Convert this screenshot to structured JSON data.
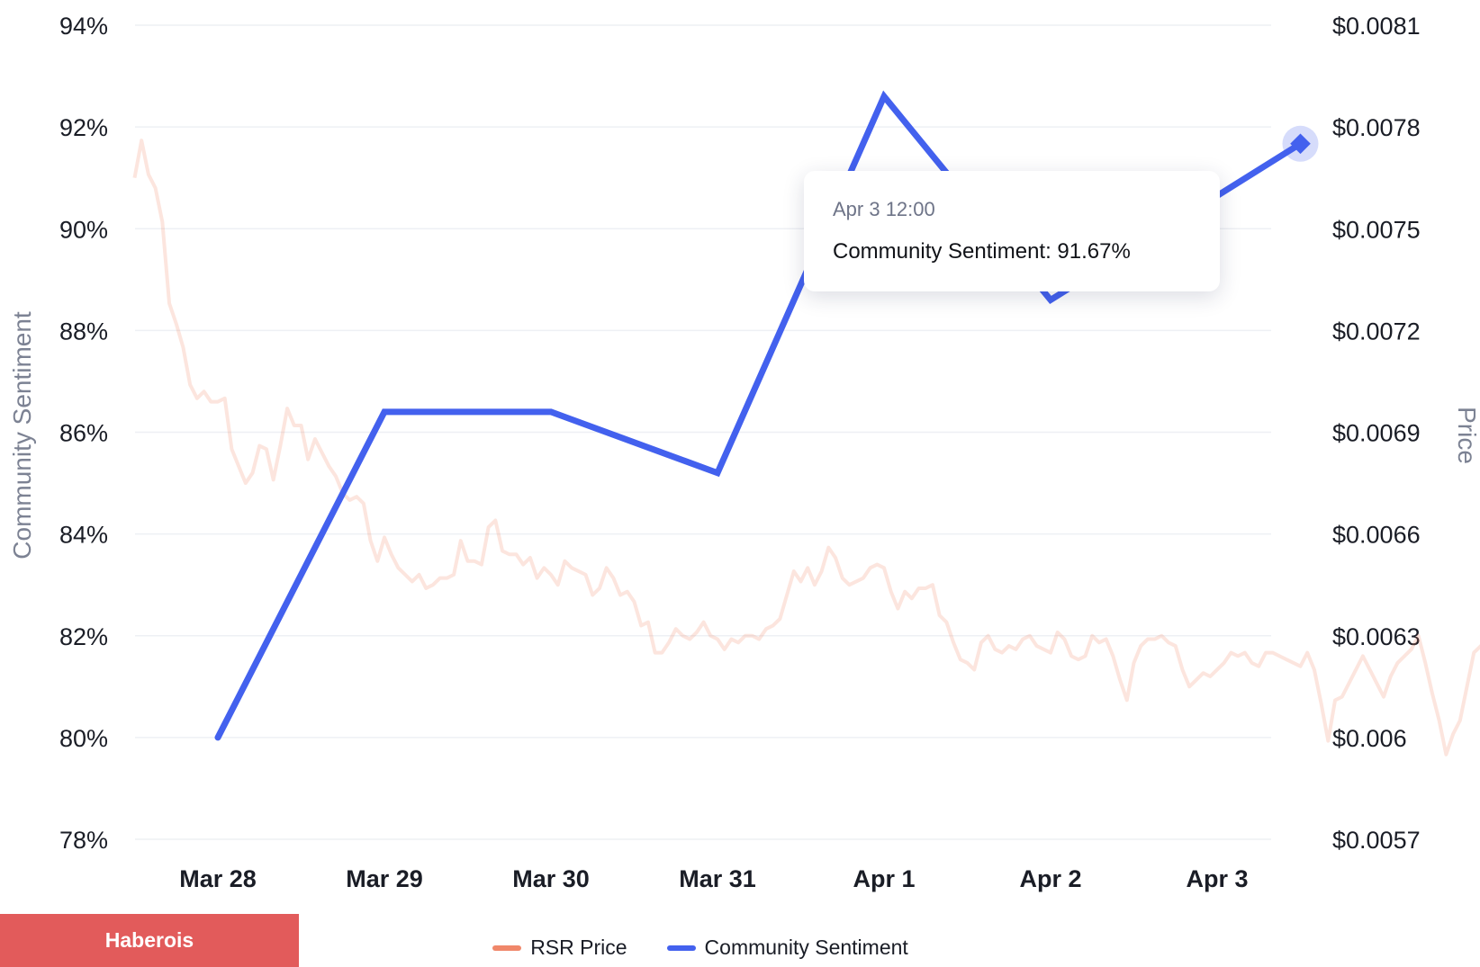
{
  "chart_data": {
    "type": "line",
    "title": "",
    "x_categories": [
      "Mar 28",
      "Mar 29",
      "Mar 30",
      "Mar 31",
      "Apr 1",
      "Apr 2",
      "Apr 3"
    ],
    "highlighted_category": "Apr 3",
    "left_axis": {
      "label": "Community Sentiment",
      "ticks": [
        "94%",
        "92%",
        "90%",
        "88%",
        "86%",
        "84%",
        "82%",
        "80%",
        "78%"
      ],
      "range": [
        78,
        94
      ]
    },
    "right_axis": {
      "label": "Price",
      "ticks": [
        "$0.0081",
        "$0.0078",
        "$0.0075",
        "$0.0072",
        "$0.0069",
        "$0.0066",
        "$0.0063",
        "$0.006",
        "$0.0057"
      ],
      "range": [
        0.0057,
        0.0081
      ]
    },
    "grid": true,
    "legend_position": "bottom-center",
    "series": [
      {
        "name": "Community Sentiment",
        "axis": "left",
        "color": "#4361ee",
        "points": [
          {
            "x": "Mar 28",
            "y": 80.0
          },
          {
            "x": "Mar 29",
            "y": 86.4
          },
          {
            "x": "Mar 30",
            "y": 86.4
          },
          {
            "x": "Mar 31",
            "y": 85.2
          },
          {
            "x": "Apr 1",
            "y": 92.6
          },
          {
            "x": "Apr 2",
            "y": 88.6
          },
          {
            "x": "Apr 3 12:00",
            "y": 91.67
          }
        ]
      },
      {
        "name": "RSR Price",
        "axis": "right",
        "color": "#f0876a",
        "x_start": "Mar 27 12:00",
        "step_hours": 1,
        "values": [
          0.00765,
          0.00776,
          0.00766,
          0.00762,
          0.00752,
          0.00728,
          0.00722,
          0.00715,
          0.00704,
          0.007,
          0.00702,
          0.00699,
          0.00699,
          0.007,
          0.00685,
          0.0068,
          0.00675,
          0.00678,
          0.00686,
          0.00685,
          0.00676,
          0.00686,
          0.00697,
          0.00692,
          0.00692,
          0.00682,
          0.00688,
          0.00684,
          0.0068,
          0.00677,
          0.00672,
          0.0067,
          0.00671,
          0.00669,
          0.00658,
          0.00652,
          0.00659,
          0.00654,
          0.0065,
          0.00648,
          0.00646,
          0.00648,
          0.00644,
          0.00645,
          0.00647,
          0.00647,
          0.00648,
          0.00658,
          0.00652,
          0.00652,
          0.00651,
          0.00662,
          0.00664,
          0.00655,
          0.00654,
          0.00654,
          0.00651,
          0.00653,
          0.00647,
          0.0065,
          0.00648,
          0.00645,
          0.00652,
          0.0065,
          0.00649,
          0.00648,
          0.00642,
          0.00644,
          0.0065,
          0.00647,
          0.00642,
          0.00643,
          0.0064,
          0.00633,
          0.00634,
          0.00625,
          0.00625,
          0.00628,
          0.00632,
          0.0063,
          0.00629,
          0.00631,
          0.00634,
          0.0063,
          0.00629,
          0.00626,
          0.00629,
          0.00628,
          0.0063,
          0.0063,
          0.00629,
          0.00632,
          0.00633,
          0.00635,
          0.00642,
          0.00649,
          0.00646,
          0.0065,
          0.00645,
          0.00649,
          0.00656,
          0.00653,
          0.00647,
          0.00645,
          0.00646,
          0.00647,
          0.0065,
          0.00651,
          0.0065,
          0.00643,
          0.00638,
          0.00643,
          0.00641,
          0.00644,
          0.00644,
          0.00645,
          0.00636,
          0.00634,
          0.00628,
          0.00623,
          0.00622,
          0.0062,
          0.00628,
          0.0063,
          0.00626,
          0.00625,
          0.00627,
          0.00626,
          0.00629,
          0.0063,
          0.00627,
          0.00626,
          0.00625,
          0.00631,
          0.00629,
          0.00624,
          0.00623,
          0.00624,
          0.0063,
          0.00628,
          0.00629,
          0.00624,
          0.00617,
          0.00611,
          0.00622,
          0.00627,
          0.00629,
          0.00629,
          0.0063,
          0.00628,
          0.00627,
          0.0062,
          0.00615,
          0.00617,
          0.00619,
          0.00618,
          0.0062,
          0.00622,
          0.00625,
          0.00624,
          0.00625,
          0.00622,
          0.00621,
          0.00625,
          0.00625,
          0.00624,
          0.00623,
          0.00622,
          0.00621,
          0.00625,
          0.0062,
          0.0061,
          0.00599,
          0.00611,
          0.00612,
          0.00616,
          0.0062,
          0.00624,
          0.0062,
          0.00616,
          0.00612,
          0.00618,
          0.00622,
          0.00624,
          0.00626,
          0.0063,
          0.00622,
          0.00613,
          0.00605,
          0.00595,
          0.00601,
          0.00605,
          0.00615,
          0.00625,
          0.00627,
          0.00628,
          0.0063,
          0.00626,
          0.0062,
          0.00617,
          0.00615,
          0.00618,
          0.00621,
          0.00646
        ]
      }
    ]
  },
  "tooltip": {
    "time": "Apr 3 12:00",
    "series_label": "Community Sentiment",
    "value": "91.67%",
    "text": "Community Sentiment: 91.67%"
  },
  "legend": {
    "items": [
      {
        "label": "RSR Price",
        "color": "#f0876a"
      },
      {
        "label": "Community Sentiment",
        "color": "#4361ee"
      }
    ]
  },
  "watermark": {
    "label": "Haberois"
  }
}
